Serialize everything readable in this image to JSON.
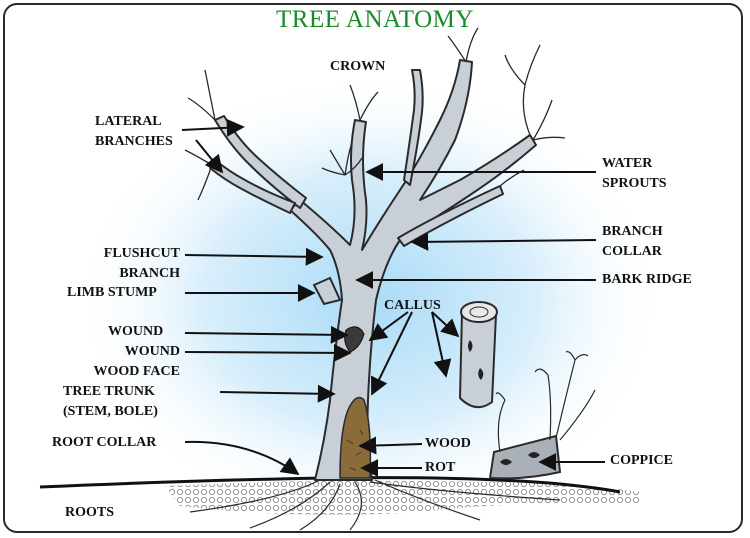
{
  "title": "TREE ANATOMY",
  "labels": {
    "crown": "CROWN",
    "lateral_1": "LATERAL",
    "lateral_2": "BRANCHES",
    "flushcut_1": "FLUSHCUT",
    "flushcut_2": "BRANCH",
    "limb_stump": "LIMB STUMP",
    "wound": "WOUND",
    "wound_face_1": "WOUND",
    "wound_face_2": "WOOD FACE",
    "trunk_1": "TREE TRUNK",
    "trunk_2": "(STEM, BOLE)",
    "root_collar": "ROOT COLLAR",
    "roots": "ROOTS",
    "water_1": "WATER",
    "water_2": "SPROUTS",
    "branch_collar_1": "BRANCH",
    "branch_collar_2": "COLLAR",
    "bark_ridge": "BARK RIDGE",
    "callus": "CALLUS",
    "wood": "WOOD",
    "rot": "ROT",
    "coppice": "COPPICE"
  },
  "colors": {
    "title": "#1a8a2a",
    "tree": "#c9cfd6",
    "glow": "#bfe3f7"
  }
}
